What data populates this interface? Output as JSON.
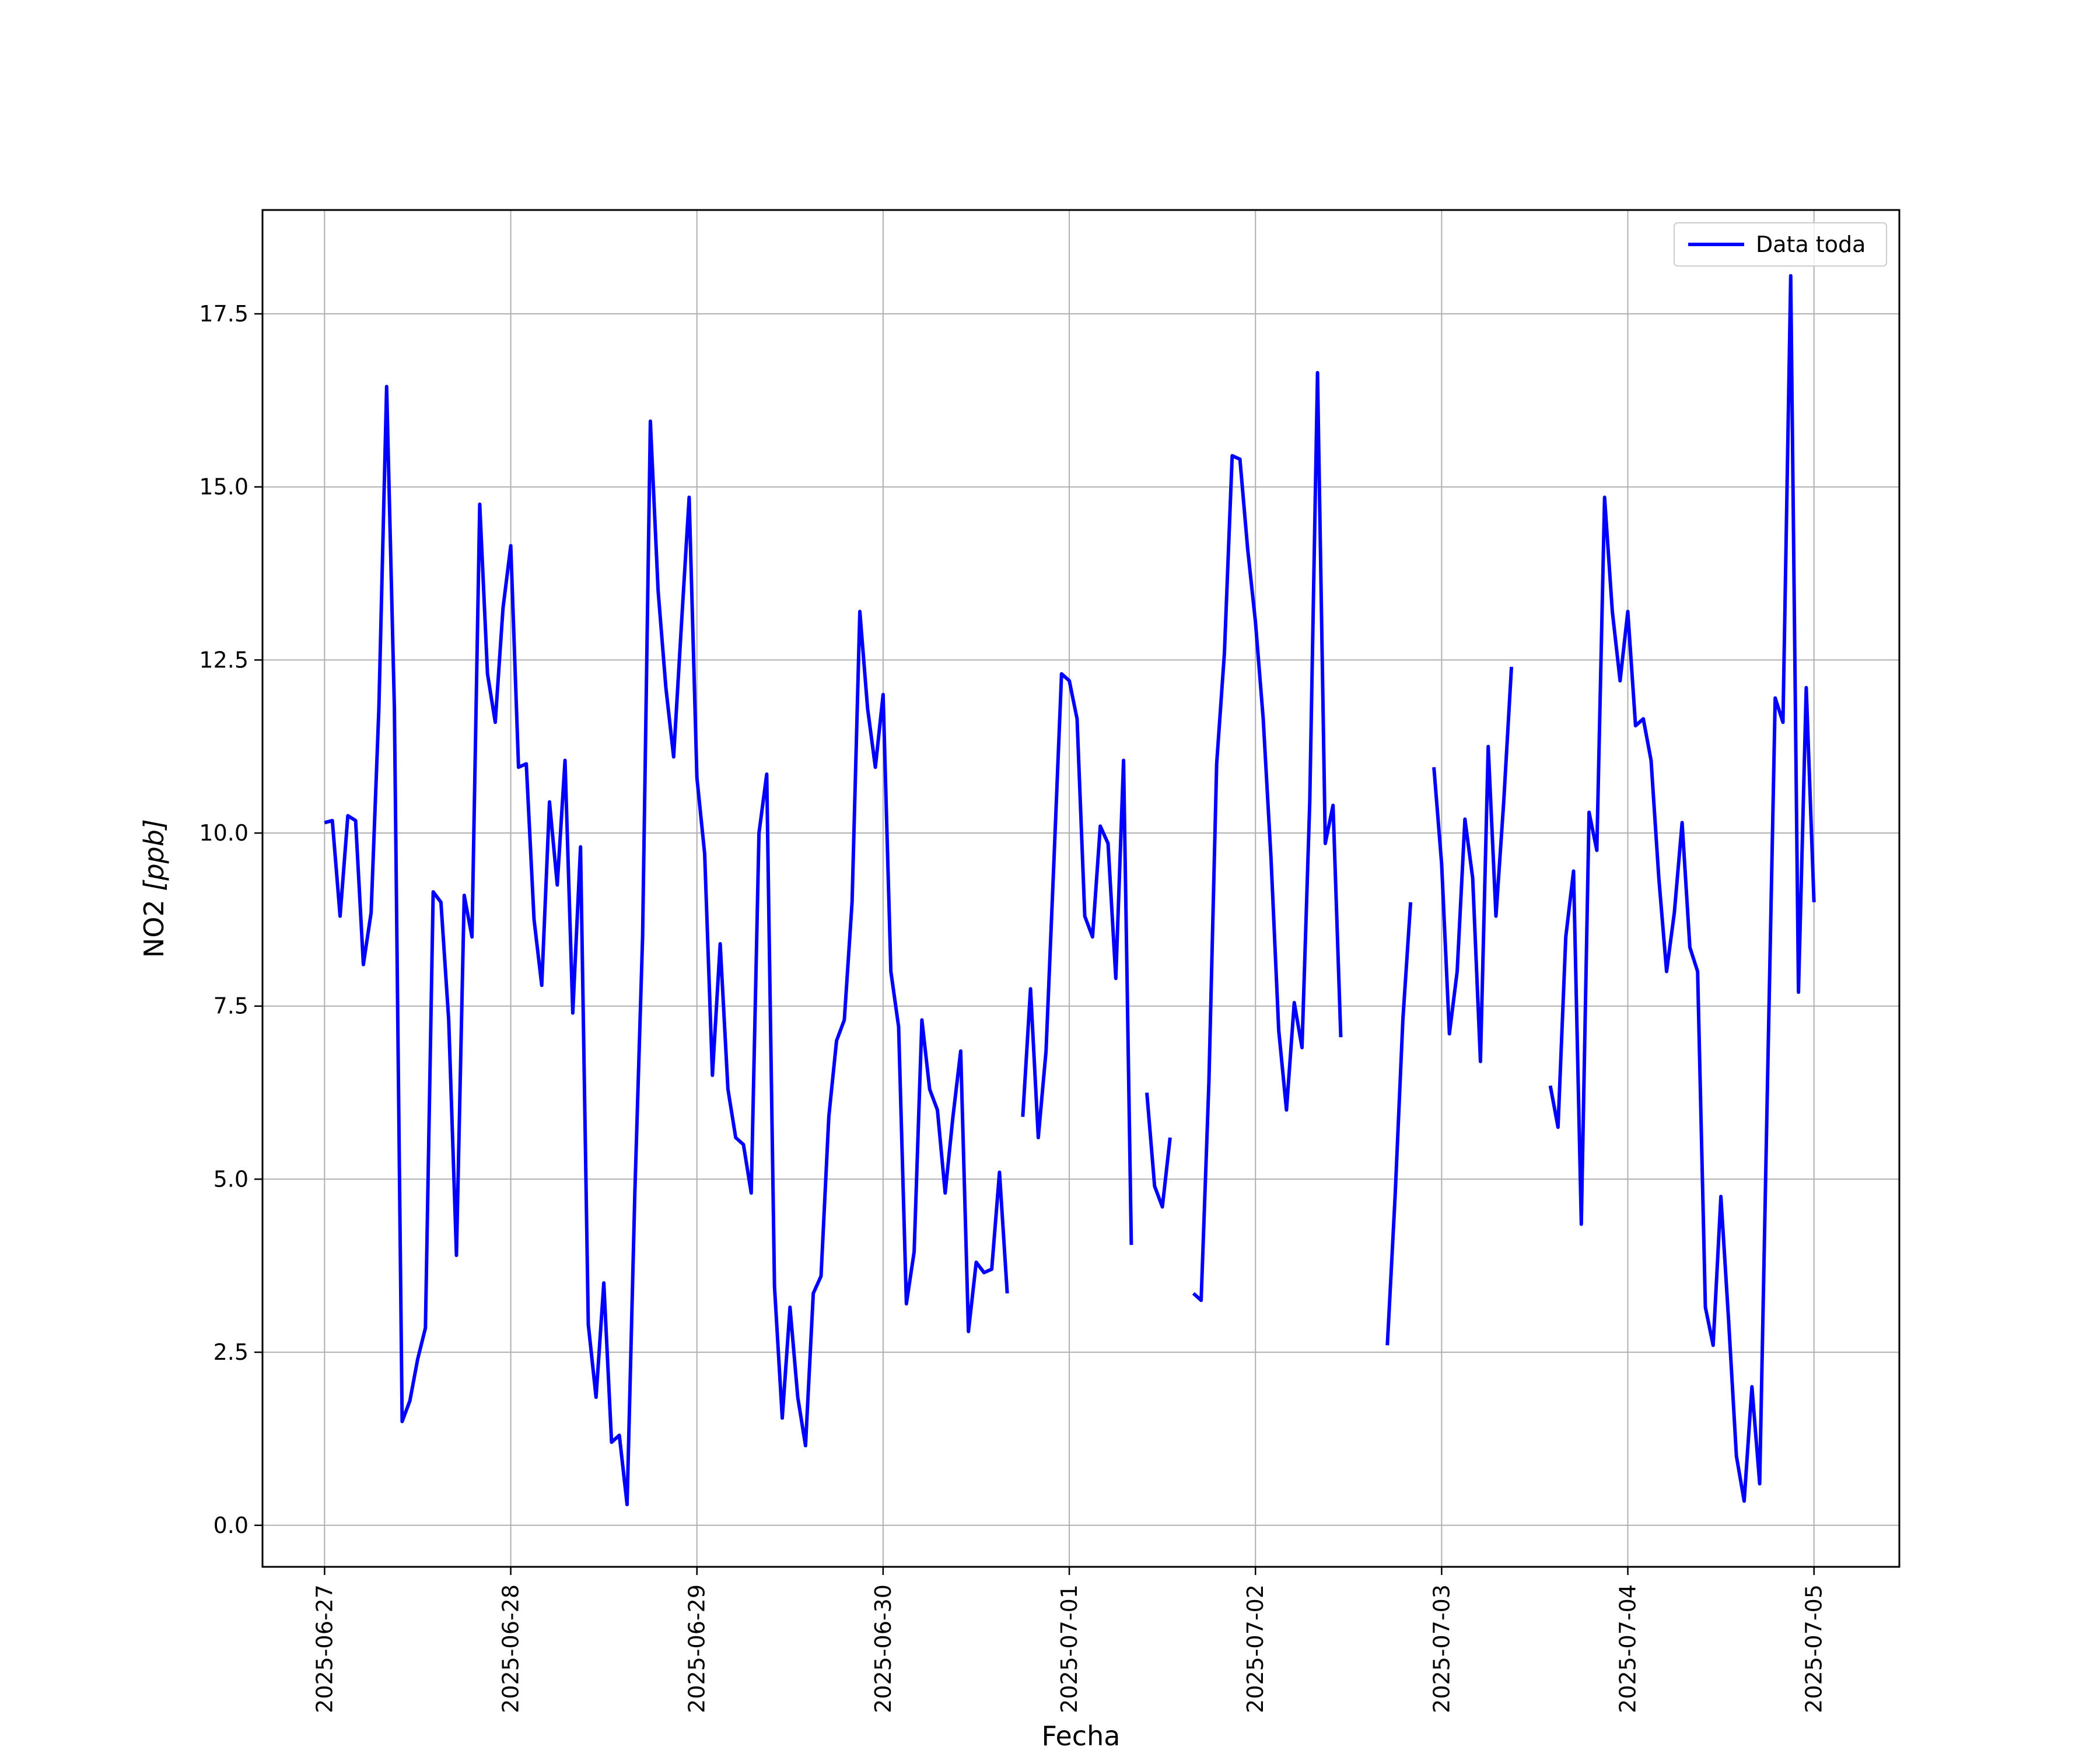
{
  "chart_data": {
    "type": "line",
    "title": "",
    "xlabel": "Fecha",
    "ylabel_main": "NO2 ",
    "ylabel_unit": "[ppb]",
    "xlim": [
      "2025-06-26T16:00",
      "2025-07-05T11:00"
    ],
    "ylim": [
      -0.6,
      19.0
    ],
    "grid": true,
    "legend": "upper-right",
    "x_ticks": [
      "2025-06-27",
      "2025-06-28",
      "2025-06-29",
      "2025-06-30",
      "2025-07-01",
      "2025-07-02",
      "2025-07-03",
      "2025-07-04",
      "2025-07-05"
    ],
    "y_ticks": [
      0.0,
      2.5,
      5.0,
      7.5,
      10.0,
      12.5,
      15.0,
      17.5
    ],
    "y_tick_labels": [
      "0.0",
      "2.5",
      "5.0",
      "7.5",
      "10.0",
      "12.5",
      "15.0",
      "17.5"
    ],
    "series": [
      {
        "name": "Data toda",
        "color": "#0000ff",
        "x": [
          "2025-06-27T00:00",
          "2025-06-27T01:00",
          "2025-06-27T02:00",
          "2025-06-27T03:00",
          "2025-06-27T04:00",
          "2025-06-27T05:00",
          "2025-06-27T06:00",
          "2025-06-27T07:00",
          "2025-06-27T08:00",
          "2025-06-27T09:00",
          "2025-06-27T10:00",
          "2025-06-27T11:00",
          "2025-06-27T12:00",
          "2025-06-27T13:00",
          "2025-06-27T14:00",
          "2025-06-27T15:00",
          "2025-06-27T16:00",
          "2025-06-27T17:00",
          "2025-06-27T18:00",
          "2025-06-27T19:00",
          "2025-06-27T20:00",
          "2025-06-27T21:00",
          "2025-06-27T22:00",
          "2025-06-27T23:00",
          "2025-06-28T00:00",
          "2025-06-28T01:00",
          "2025-06-28T02:00",
          "2025-06-28T03:00",
          "2025-06-28T04:00",
          "2025-06-28T05:00",
          "2025-06-28T06:00",
          "2025-06-28T07:00",
          "2025-06-28T08:00",
          "2025-06-28T09:00",
          "2025-06-28T10:00",
          "2025-06-28T11:00",
          "2025-06-28T12:00",
          "2025-06-28T13:00",
          "2025-06-28T14:00",
          "2025-06-28T15:00",
          "2025-06-28T16:00",
          "2025-06-28T17:00",
          "2025-06-28T18:00",
          "2025-06-28T19:00",
          "2025-06-28T20:00",
          "2025-06-28T21:00",
          "2025-06-28T22:00",
          "2025-06-28T23:00",
          "2025-06-29T00:00",
          "2025-06-29T01:00",
          "2025-06-29T02:00",
          "2025-06-29T03:00",
          "2025-06-29T04:00",
          "2025-06-29T05:00",
          "2025-06-29T06:00",
          "2025-06-29T07:00",
          "2025-06-29T08:00",
          "2025-06-29T09:00",
          "2025-06-29T10:00",
          "2025-06-29T11:00",
          "2025-06-29T12:00",
          "2025-06-29T13:00",
          "2025-06-29T14:00",
          "2025-06-29T15:00",
          "2025-06-29T16:00",
          "2025-06-29T17:00",
          "2025-06-29T18:00",
          "2025-06-29T19:00",
          "2025-06-29T20:00",
          "2025-06-29T21:00",
          "2025-06-29T22:00",
          "2025-06-29T23:00",
          "2025-06-30T00:00",
          "2025-06-30T01:00",
          "2025-06-30T02:00",
          "2025-06-30T03:00",
          "2025-06-30T04:00",
          "2025-06-30T05:00",
          "2025-06-30T06:00",
          "2025-06-30T07:00",
          "2025-06-30T08:00",
          "2025-06-30T09:00",
          "2025-06-30T10:00",
          "2025-06-30T11:00",
          "2025-06-30T12:00",
          "2025-06-30T13:00",
          "2025-06-30T14:00",
          "2025-06-30T15:00",
          "2025-06-30T16:00",
          "2025-06-30T17:00",
          "2025-06-30T18:00",
          "2025-06-30T19:00",
          "2025-06-30T20:00",
          "2025-06-30T21:00",
          "2025-06-30T22:00",
          "2025-06-30T23:00",
          "2025-07-01T00:00",
          "2025-07-01T01:00",
          "2025-07-01T02:00",
          "2025-07-01T03:00",
          "2025-07-01T04:00",
          "2025-07-01T05:00",
          "2025-07-01T06:00",
          "2025-07-01T07:00",
          "2025-07-01T08:00",
          "2025-07-01T09:00",
          "2025-07-01T10:00",
          "2025-07-01T11:00",
          "2025-07-01T12:00",
          "2025-07-01T13:00",
          "2025-07-01T14:00",
          "2025-07-01T15:00",
          "2025-07-01T16:00",
          "2025-07-01T17:00",
          "2025-07-01T18:00",
          "2025-07-01T19:00",
          "2025-07-01T20:00",
          "2025-07-01T21:00",
          "2025-07-01T22:00",
          "2025-07-01T23:00",
          "2025-07-02T00:00",
          "2025-07-02T01:00",
          "2025-07-02T02:00",
          "2025-07-02T03:00",
          "2025-07-02T04:00",
          "2025-07-02T05:00",
          "2025-07-02T06:00",
          "2025-07-02T07:00",
          "2025-07-02T08:00",
          "2025-07-02T09:00",
          "2025-07-02T10:00",
          "2025-07-02T11:00",
          "2025-07-02T12:00",
          "2025-07-02T13:00",
          "2025-07-02T14:00",
          "2025-07-02T15:00",
          "2025-07-02T16:00",
          "2025-07-02T17:00",
          "2025-07-02T18:00",
          "2025-07-02T19:00",
          "2025-07-02T20:00",
          "2025-07-02T21:00",
          "2025-07-02T22:00",
          "2025-07-02T23:00",
          "2025-07-03T00:00",
          "2025-07-03T01:00",
          "2025-07-03T02:00",
          "2025-07-03T03:00",
          "2025-07-03T04:00",
          "2025-07-03T05:00",
          "2025-07-03T06:00",
          "2025-07-03T07:00",
          "2025-07-03T08:00",
          "2025-07-03T09:00",
          "2025-07-03T10:00",
          "2025-07-03T11:00",
          "2025-07-03T12:00",
          "2025-07-03T13:00",
          "2025-07-03T14:00",
          "2025-07-03T15:00",
          "2025-07-03T16:00",
          "2025-07-03T17:00",
          "2025-07-03T18:00",
          "2025-07-03T19:00",
          "2025-07-03T20:00",
          "2025-07-03T21:00",
          "2025-07-03T22:00",
          "2025-07-03T23:00",
          "2025-07-04T00:00",
          "2025-07-04T01:00",
          "2025-07-04T02:00",
          "2025-07-04T03:00",
          "2025-07-04T04:00",
          "2025-07-04T05:00",
          "2025-07-04T06:00",
          "2025-07-04T07:00",
          "2025-07-04T08:00",
          "2025-07-04T09:00",
          "2025-07-04T10:00",
          "2025-07-04T11:00",
          "2025-07-04T12:00",
          "2025-07-04T13:00",
          "2025-07-04T14:00",
          "2025-07-04T15:00",
          "2025-07-04T16:00",
          "2025-07-04T17:00",
          "2025-07-04T18:00",
          "2025-07-04T19:00",
          "2025-07-04T20:00",
          "2025-07-04T21:00",
          "2025-07-04T22:00",
          "2025-07-04T23:00",
          "2025-07-05T00:00"
        ],
        "y": [
          10.15,
          10.18,
          8.8,
          10.25,
          10.18,
          8.1,
          8.85,
          11.8,
          16.45,
          11.8,
          1.5,
          1.8,
          2.4,
          2.85,
          9.15,
          9.0,
          7.3,
          3.9,
          9.1,
          8.5,
          14.75,
          12.3,
          11.6,
          13.25,
          14.15,
          10.95,
          11.0,
          8.75,
          7.8,
          10.45,
          9.25,
          11.05,
          7.4,
          9.8,
          2.9,
          1.85,
          3.5,
          1.2,
          1.3,
          0.3,
          4.8,
          8.5,
          15.95,
          13.5,
          12.1,
          11.1,
          13.0,
          14.85,
          10.8,
          9.7,
          6.5,
          8.4,
          6.3,
          5.6,
          5.5,
          4.8,
          10.0,
          10.85,
          3.45,
          1.55,
          3.15,
          1.85,
          1.15,
          3.35,
          3.6,
          5.9,
          7.0,
          7.3,
          9.0,
          13.2,
          11.8,
          10.95,
          12.0,
          8.0,
          7.2,
          3.2,
          3.95,
          7.3,
          6.3,
          6.0,
          4.8,
          5.9,
          6.85,
          2.8,
          3.8,
          3.65,
          3.7,
          5.1,
          3.35,
          null,
          5.9,
          7.75,
          5.6,
          6.85,
          9.55,
          12.3,
          12.2,
          11.65,
          8.8,
          8.5,
          10.1,
          9.85,
          7.9,
          11.05,
          4.05,
          null,
          6.25,
          4.9,
          4.6,
          5.6,
          null,
          null,
          3.35,
          3.25,
          6.4,
          11.0,
          12.6,
          15.45,
          15.4,
          14.1,
          13.05,
          11.65,
          9.65,
          7.15,
          6.0,
          7.55,
          6.9,
          10.45,
          16.65,
          9.85,
          10.4,
          7.05,
          null,
          null,
          null,
          null,
          null,
          2.6,
          4.75,
          7.3,
          9.0,
          null,
          null,
          10.95,
          9.55,
          7.1,
          8.0,
          10.2,
          9.35,
          6.7,
          11.25,
          8.8,
          10.45,
          12.4,
          null,
          null,
          null,
          null,
          6.35,
          5.75,
          8.5,
          9.45,
          4.35,
          10.3,
          9.75,
          14.85,
          13.2,
          12.2,
          13.2,
          11.55,
          11.65,
          11.05,
          9.35,
          8.0,
          8.85,
          10.15,
          8.35,
          8.0,
          3.15,
          2.6,
          4.75,
          2.95,
          1.0,
          0.35,
          2.0,
          0.6,
          6.35,
          11.95,
          11.6,
          18.05,
          7.7,
          12.1,
          9.0
        ]
      }
    ]
  }
}
